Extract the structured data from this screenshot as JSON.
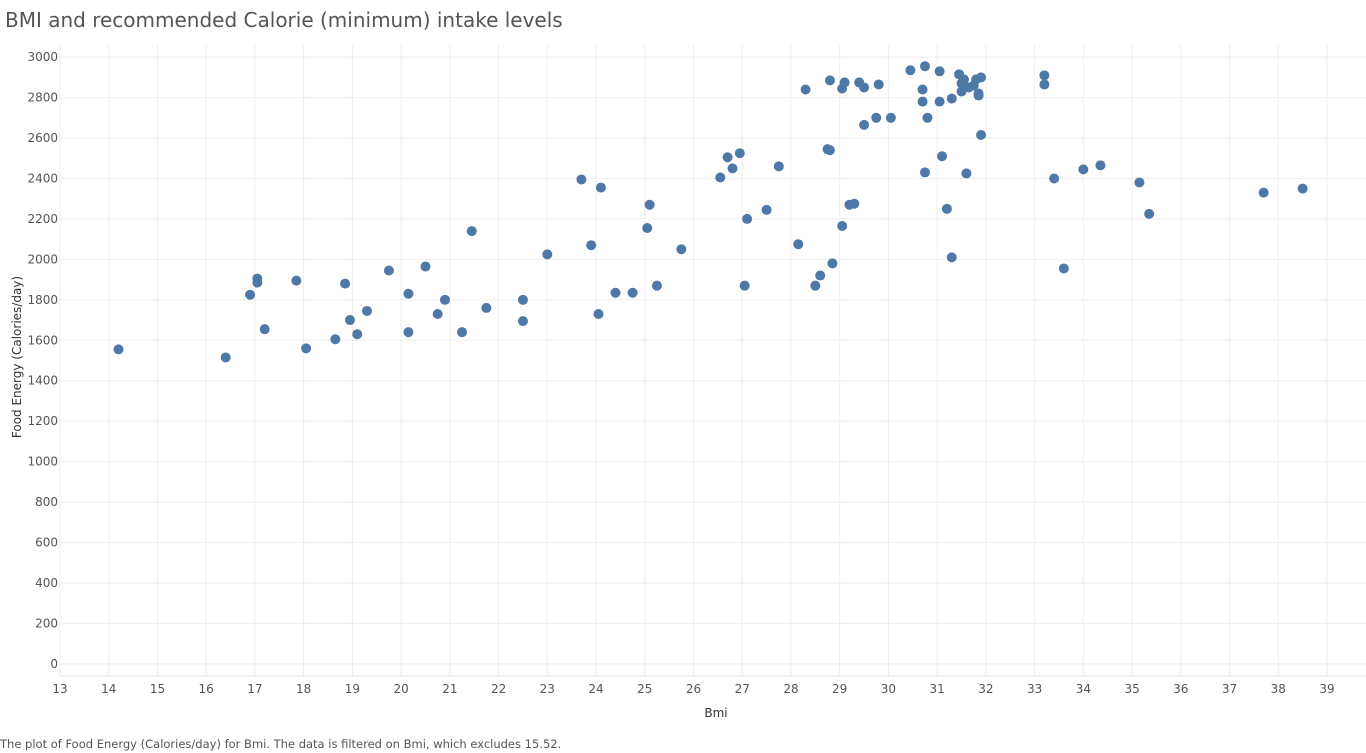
{
  "chart_data": {
    "type": "scatter",
    "title": "BMI and recommended Calorie (minimum) intake levels",
    "xlabel": "Bmi",
    "ylabel": "Food Energy (Calories/day)",
    "caption": "The plot of Food Energy (Calories/day) for Bmi. The data is filtered on Bmi, which excludes 15.52.",
    "xlim": [
      13,
      39.8
    ],
    "ylim": [
      -60,
      3060
    ],
    "xticks": [
      13,
      14,
      15,
      16,
      17,
      18,
      19,
      20,
      21,
      22,
      23,
      24,
      25,
      26,
      27,
      28,
      29,
      30,
      31,
      32,
      33,
      34,
      35,
      36,
      37,
      38,
      39
    ],
    "yticks": [
      0,
      200,
      400,
      600,
      800,
      1000,
      1200,
      1400,
      1600,
      1800,
      2000,
      2200,
      2400,
      2600,
      2800,
      3000
    ],
    "grid": true,
    "marker_color": "#4e79a7",
    "points": [
      [
        14.2,
        1555
      ],
      [
        16.4,
        1515
      ],
      [
        16.9,
        1825
      ],
      [
        17.05,
        1885
      ],
      [
        17.05,
        1905
      ],
      [
        17.2,
        1655
      ],
      [
        17.85,
        1895
      ],
      [
        18.05,
        1560
      ],
      [
        18.65,
        1605
      ],
      [
        18.85,
        1880
      ],
      [
        18.95,
        1700
      ],
      [
        19.1,
        1630
      ],
      [
        19.3,
        1745
      ],
      [
        19.75,
        1945
      ],
      [
        20.15,
        1640
      ],
      [
        20.15,
        1830
      ],
      [
        20.5,
        1965
      ],
      [
        20.75,
        1730
      ],
      [
        20.9,
        1800
      ],
      [
        21.25,
        1640
      ],
      [
        21.45,
        2140
      ],
      [
        21.75,
        1760
      ],
      [
        22.5,
        1800
      ],
      [
        22.5,
        1695
      ],
      [
        23.0,
        2025
      ],
      [
        23.7,
        2395
      ],
      [
        23.9,
        2070
      ],
      [
        24.05,
        1730
      ],
      [
        24.1,
        2355
      ],
      [
        24.4,
        1835
      ],
      [
        24.75,
        1835
      ],
      [
        25.05,
        2155
      ],
      [
        25.1,
        2270
      ],
      [
        25.25,
        1870
      ],
      [
        25.75,
        2050
      ],
      [
        26.55,
        2405
      ],
      [
        26.7,
        2505
      ],
      [
        26.8,
        2450
      ],
      [
        26.95,
        2525
      ],
      [
        27.05,
        1870
      ],
      [
        27.1,
        2200
      ],
      [
        27.5,
        2245
      ],
      [
        27.75,
        2460
      ],
      [
        28.15,
        2075
      ],
      [
        28.3,
        2840
      ],
      [
        28.5,
        1870
      ],
      [
        28.6,
        1920
      ],
      [
        28.75,
        2545
      ],
      [
        28.8,
        2540
      ],
      [
        28.8,
        2885
      ],
      [
        28.85,
        1980
      ],
      [
        29.05,
        2165
      ],
      [
        29.05,
        2845
      ],
      [
        29.1,
        2875
      ],
      [
        29.2,
        2270
      ],
      [
        29.3,
        2275
      ],
      [
        29.4,
        2875
      ],
      [
        29.5,
        2665
      ],
      [
        29.5,
        2850
      ],
      [
        29.75,
        2700
      ],
      [
        29.8,
        2865
      ],
      [
        30.05,
        2700
      ],
      [
        30.45,
        2935
      ],
      [
        30.7,
        2840
      ],
      [
        30.7,
        2780
      ],
      [
        30.75,
        2955
      ],
      [
        30.75,
        2430
      ],
      [
        30.8,
        2700
      ],
      [
        31.05,
        2930
      ],
      [
        31.05,
        2780
      ],
      [
        31.1,
        2510
      ],
      [
        31.2,
        2250
      ],
      [
        31.3,
        2795
      ],
      [
        31.3,
        2010
      ],
      [
        31.45,
        2915
      ],
      [
        31.5,
        2830
      ],
      [
        31.5,
        2870
      ],
      [
        31.55,
        2890
      ],
      [
        31.6,
        2425
      ],
      [
        31.65,
        2850
      ],
      [
        31.75,
        2860
      ],
      [
        31.8,
        2890
      ],
      [
        31.85,
        2820
      ],
      [
        31.85,
        2810
      ],
      [
        31.9,
        2615
      ],
      [
        31.9,
        2900
      ],
      [
        33.2,
        2910
      ],
      [
        33.2,
        2865
      ],
      [
        33.4,
        2400
      ],
      [
        33.6,
        1955
      ],
      [
        34.0,
        2445
      ],
      [
        34.35,
        2465
      ],
      [
        35.15,
        2380
      ],
      [
        35.35,
        2225
      ],
      [
        37.7,
        2330
      ],
      [
        38.5,
        2350
      ]
    ]
  }
}
